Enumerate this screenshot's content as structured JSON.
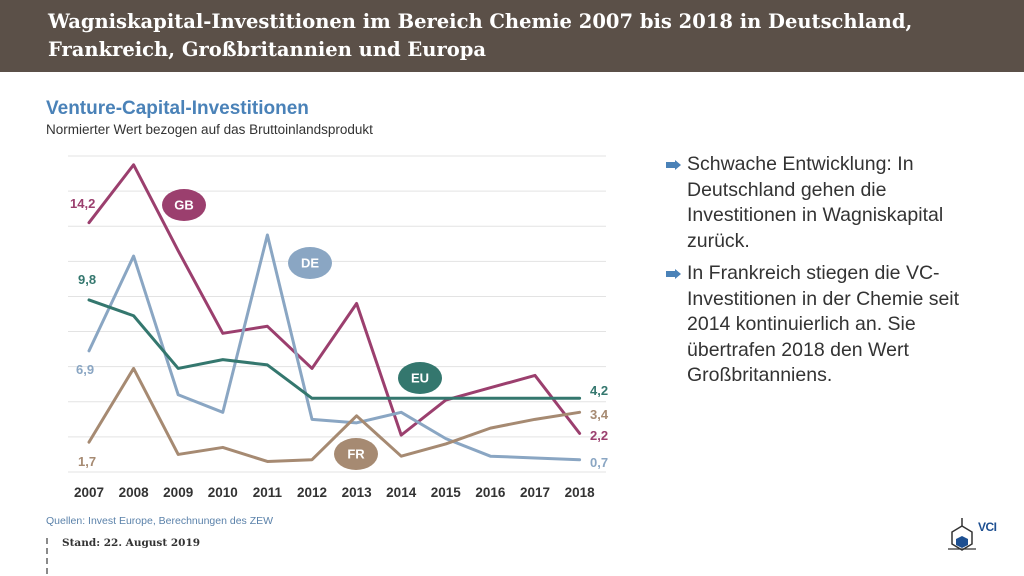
{
  "header": {
    "title": "Wagniskapital-Investitionen im Bereich Chemie 2007 bis 2018 in Deutschland, Frankreich, Großbritannien und Europa"
  },
  "chart_data": {
    "type": "line",
    "title": "Venture-Capital-Investitionen",
    "subtitle": "Normierter Wert bezogen auf das Bruttoinlandsprodukt",
    "categories": [
      "2007",
      "2008",
      "2009",
      "2010",
      "2011",
      "2012",
      "2013",
      "2014",
      "2015",
      "2016",
      "2017",
      "2018"
    ],
    "ylim": [
      0,
      18
    ],
    "grid": true,
    "series": [
      {
        "name": "GB",
        "color": "#9b3f6e",
        "values": [
          14.2,
          17.5,
          12.6,
          7.9,
          8.3,
          5.9,
          9.6,
          2.1,
          4.1,
          4.8,
          5.5,
          2.2
        ],
        "start_label": "14,2",
        "end_label": "2,2"
      },
      {
        "name": "DE",
        "color": "#8aa6c3",
        "values": [
          6.9,
          12.3,
          4.4,
          3.4,
          13.5,
          3.0,
          2.8,
          3.4,
          1.9,
          0.9,
          0.8,
          0.7
        ],
        "start_label": "6,9",
        "end_label": "0,7"
      },
      {
        "name": "EU",
        "color": "#34776e",
        "values": [
          9.8,
          8.9,
          5.9,
          6.4,
          6.1,
          4.2,
          4.2,
          4.2,
          4.2,
          4.2,
          4.2,
          4.2
        ],
        "start_label": "9,8",
        "end_label": "4,2"
      },
      {
        "name": "FR",
        "color": "#a68a72",
        "values": [
          1.7,
          5.9,
          1.0,
          1.4,
          0.6,
          0.7,
          3.2,
          0.9,
          1.6,
          2.5,
          3.0,
          3.4
        ],
        "start_label": "1,7",
        "end_label": "3,4"
      }
    ]
  },
  "bullets": [
    "Schwache Entwicklung: In Deutschland gehen die Investitionen in Wagniskapital zurück.",
    "In Frankreich stiegen die VC-Investitionen in der Chemie seit 2014 kontinuierlich an. Sie übertrafen 2018 den Wert Großbritanniens."
  ],
  "footer": {
    "source": "Quellen: Invest Europe, Berechnungen des ZEW",
    "stand": "Stand: 22. August 2019",
    "logo_text": "VCI"
  },
  "colors": {
    "header_bg": "#5b5048",
    "bullet_icon": "#4a82b8",
    "title_blue": "#4a82b8"
  },
  "icons": {
    "bullet": "arrow-right-icon",
    "logo": "vci-hexagon-logo"
  }
}
